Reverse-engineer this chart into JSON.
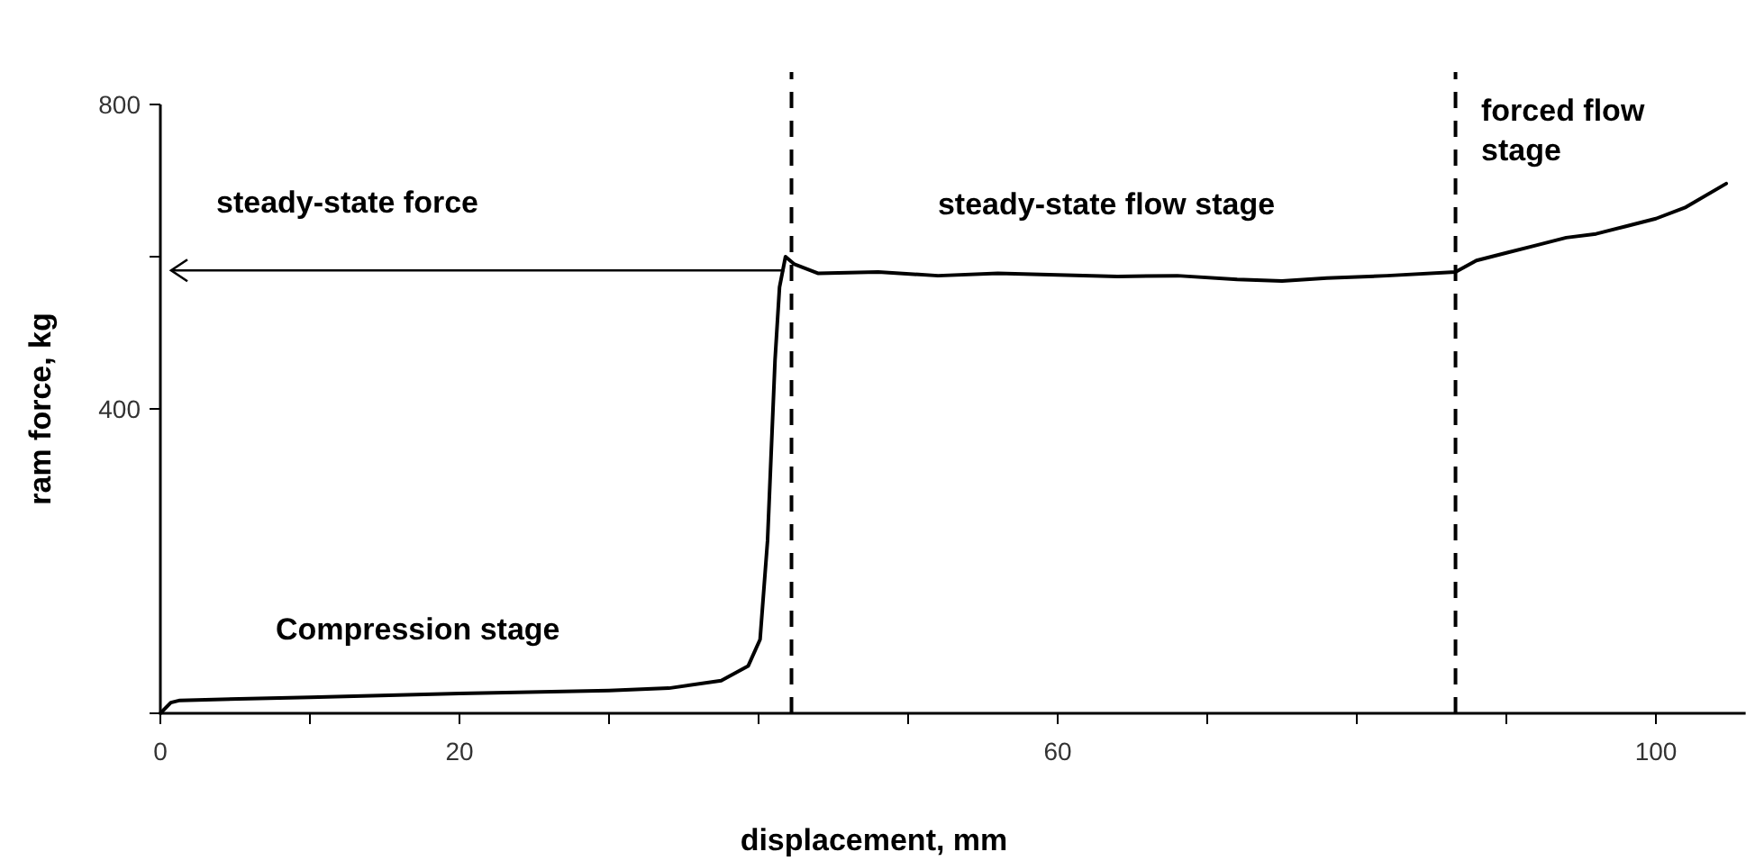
{
  "chart_data": {
    "type": "line",
    "xlabel": "displacement, mm",
    "ylabel": "ram force, kg",
    "x": [
      0,
      0.7,
      1.3,
      10,
      20,
      30,
      34,
      37.5,
      39.3,
      40.1,
      40.6,
      41.1,
      41.4,
      41.8,
      42.4,
      44,
      48,
      52,
      56,
      60,
      64,
      68,
      72,
      75,
      78,
      82,
      86.6,
      88,
      90,
      92,
      94,
      96,
      98,
      100,
      102,
      104.7
    ],
    "values": [
      0,
      14,
      17,
      21,
      26,
      30,
      33,
      43,
      62,
      97,
      227,
      464,
      560,
      600,
      590,
      578,
      580,
      575,
      578,
      576,
      574,
      575,
      570,
      568,
      572,
      575,
      580,
      595,
      605,
      615,
      625,
      630,
      640,
      650,
      665,
      696
    ],
    "color": "#000000",
    "line_style": "solid",
    "marker": "none",
    "xlim": [
      0,
      106
    ],
    "xticks": [
      0,
      {
        "value": 10,
        "label": null
      },
      20,
      {
        "value": 30,
        "label": null
      },
      {
        "value": 40,
        "label": null
      },
      {
        "value": 50,
        "label": null
      },
      60,
      {
        "value": 70,
        "label": null
      },
      {
        "value": 80,
        "label": null
      },
      {
        "value": 90,
        "label": null
      },
      100
    ],
    "ylim": [
      0,
      800
    ],
    "yticks": [
      {
        "value": 0,
        "label": null
      },
      400,
      {
        "value": 600,
        "label": null
      },
      800
    ],
    "grid": false,
    "ref_lines": [
      {
        "axis": "x",
        "value": 42.2,
        "line_style": "dashed"
      },
      {
        "axis": "x",
        "value": 86.6,
        "line_style": "dashed"
      },
      {
        "axis": "y",
        "value": 582,
        "label": "steady-state force",
        "line_style": "solid"
      }
    ],
    "annotations": [
      "Compression stage",
      "steady-state flow stage",
      "forced flow\nstage"
    ]
  }
}
